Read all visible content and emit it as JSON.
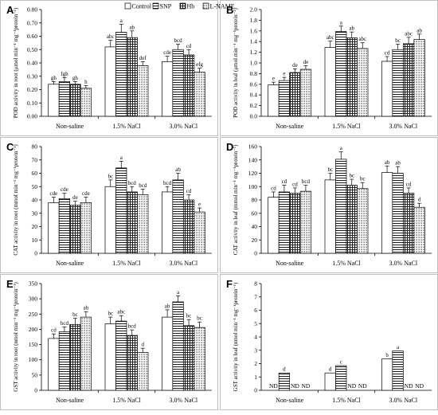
{
  "legend": {
    "entries": [
      {
        "name": "Control",
        "pattern": "none"
      },
      {
        "name": "SNP",
        "pattern": "hlines"
      },
      {
        "name": "Hb",
        "pattern": "grid"
      },
      {
        "name": "L-NAME",
        "pattern": "dots"
      }
    ]
  },
  "chart_data": [
    {
      "panel": "A",
      "type": "bar",
      "ylabel": "POD activity in root (μmol min⁻¹ mg⁻¹protein⁻¹)",
      "ylim": [
        0,
        0.8
      ],
      "yticks": [
        "0.00",
        "0.10",
        "0.20",
        "0.30",
        "0.40",
        "0.50",
        "0.60",
        "0.70",
        "0.80"
      ],
      "categories": [
        "Non-saline",
        "1.5% NaCl",
        "3.0% NaCl"
      ],
      "series": [
        {
          "name": "Control",
          "values": [
            0.24,
            0.52,
            0.41
          ],
          "errors": [
            0.02,
            0.05,
            0.04
          ],
          "letters": [
            "gh",
            "abc",
            "cde"
          ]
        },
        {
          "name": "SNP",
          "values": [
            0.26,
            0.63,
            0.5
          ],
          "errors": [
            0.03,
            0.06,
            0.04
          ],
          "letters": [
            "fgh",
            "a",
            "bcd"
          ]
        },
        {
          "name": "Hb",
          "values": [
            0.24,
            0.59,
            0.46
          ],
          "errors": [
            0.02,
            0.05,
            0.04
          ],
          "letters": [
            "gh",
            "ab",
            "cd"
          ]
        },
        {
          "name": "L-NAME",
          "values": [
            0.21,
            0.38,
            0.33
          ],
          "errors": [
            0.02,
            0.03,
            0.03
          ],
          "letters": [
            "h",
            "def",
            "efg"
          ]
        }
      ]
    },
    {
      "panel": "B",
      "type": "bar",
      "ylabel": "POD activity in leaf (μmol min⁻¹ mg⁻¹protein⁻¹)",
      "ylim": [
        0,
        2.0
      ],
      "yticks": [
        "0.0",
        "0.2",
        "0.4",
        "0.6",
        "0.8",
        "1.0",
        "1.2",
        "1.4",
        "1.6",
        "1.8",
        "2.0"
      ],
      "categories": [
        "Non-saline",
        "1.5% NaCl",
        "3.0% NaCl"
      ],
      "series": [
        {
          "name": "Control",
          "values": [
            0.59,
            1.29,
            1.03
          ],
          "errors": [
            0.05,
            0.12,
            0.09
          ],
          "letters": [
            "e",
            "abc",
            "cd"
          ]
        },
        {
          "name": "SNP",
          "values": [
            0.67,
            1.59,
            1.25
          ],
          "errors": [
            0.06,
            0.1,
            0.1
          ],
          "letters": [
            "e",
            "a",
            "bc"
          ]
        },
        {
          "name": "Hb",
          "values": [
            0.82,
            1.47,
            1.36
          ],
          "errors": [
            0.07,
            0.11,
            0.12
          ],
          "letters": [
            "de",
            "ab",
            "abc"
          ]
        },
        {
          "name": "L-NAME",
          "values": [
            0.88,
            1.27,
            1.44
          ],
          "errors": [
            0.07,
            0.11,
            0.1
          ],
          "letters": [
            "de",
            "abc",
            "ab"
          ]
        }
      ]
    },
    {
      "panel": "C",
      "type": "bar",
      "ylabel": "CAT activity in root (mmol min⁻¹ mg⁻¹protein⁻¹)",
      "ylim": [
        0,
        80
      ],
      "yticks": [
        "0",
        "10",
        "20",
        "30",
        "40",
        "50",
        "60",
        "70",
        "80"
      ],
      "categories": [
        "Non-saline",
        "1.5% NaCl",
        "3.0% NaCl"
      ],
      "series": [
        {
          "name": "Control",
          "values": [
            38,
            50,
            46
          ],
          "errors": [
            4,
            5,
            4
          ],
          "letters": [
            "cde",
            "bc",
            "bcd"
          ]
        },
        {
          "name": "SNP",
          "values": [
            41,
            64,
            55
          ],
          "errors": [
            4,
            5,
            5
          ],
          "letters": [
            "cde",
            "a",
            "ab"
          ]
        },
        {
          "name": "Hb",
          "values": [
            36,
            46,
            40
          ],
          "errors": [
            3,
            4,
            4
          ],
          "letters": [
            "de",
            "bcd",
            "cd"
          ]
        },
        {
          "name": "L-NAME",
          "values": [
            38,
            44,
            31
          ],
          "errors": [
            4,
            4,
            3
          ],
          "letters": [
            "cde",
            "bcd",
            "e"
          ]
        }
      ]
    },
    {
      "panel": "D",
      "type": "bar",
      "ylabel": "CAT activity in leaf (mmol min⁻¹ mg⁻¹protein⁻¹)",
      "ylim": [
        0,
        160
      ],
      "yticks": [
        "0",
        "20",
        "40",
        "60",
        "80",
        "100",
        "120",
        "140",
        "160"
      ],
      "categories": [
        "Non-saline",
        "1.5% NaCl",
        "3.0% NaCl"
      ],
      "series": [
        {
          "name": "Control",
          "values": [
            84,
            110,
            121
          ],
          "errors": [
            8,
            10,
            10
          ],
          "letters": [
            "cd",
            "bc",
            "ab"
          ]
        },
        {
          "name": "SNP",
          "values": [
            92,
            141,
            120
          ],
          "errors": [
            10,
            11,
            10
          ],
          "letters": [
            "cd",
            "a",
            "ab"
          ]
        },
        {
          "name": "Hb",
          "values": [
            90,
            102,
            90
          ],
          "errors": [
            8,
            9,
            8
          ],
          "letters": [
            "cd",
            "bc",
            "cd"
          ]
        },
        {
          "name": "L-NAME",
          "values": [
            93,
            97,
            69
          ],
          "errors": [
            9,
            9,
            6
          ],
          "letters": [
            "bcd",
            "bc",
            "d"
          ]
        }
      ]
    },
    {
      "panel": "E",
      "type": "bar",
      "ylabel": "GST activity in root (nmol min⁻¹ mg⁻¹protein⁻¹)",
      "ylim": [
        0,
        350
      ],
      "yticks": [
        "0",
        "50",
        "100",
        "150",
        "200",
        "250",
        "300",
        "350"
      ],
      "categories": [
        "Non-saline",
        "1.5% NaCl",
        "3.0% NaCl"
      ],
      "series": [
        {
          "name": "Control",
          "values": [
            170,
            218,
            240
          ],
          "errors": [
            15,
            22,
            24
          ],
          "letters": [
            "cd",
            "bc",
            "ab"
          ]
        },
        {
          "name": "SNP",
          "values": [
            192,
            227,
            290
          ],
          "errors": [
            16,
            18,
            20
          ],
          "letters": [
            "bcd",
            "abc",
            "a"
          ]
        },
        {
          "name": "Hb",
          "values": [
            216,
            180,
            212
          ],
          "errors": [
            20,
            18,
            20
          ],
          "letters": [
            "bc",
            "bcd",
            "bc"
          ]
        },
        {
          "name": "L-NAME",
          "values": [
            240,
            124,
            206
          ],
          "errors": [
            18,
            14,
            18
          ],
          "letters": [
            "ab",
            "d",
            "bc"
          ]
        }
      ]
    },
    {
      "panel": "F",
      "type": "bar",
      "ylabel": "GST activity in leaf (nmol min⁻¹ mg⁻¹protein⁻¹)",
      "ylim": [
        0,
        8
      ],
      "yticks": [
        "0",
        "1",
        "2",
        "3",
        "4",
        "5",
        "6",
        "7",
        "8"
      ],
      "categories": [
        "Non-saline",
        "1.5% NaCl",
        "3.0% NaCl"
      ],
      "series": [
        {
          "name": "Control",
          "values": [
            null,
            1.3,
            2.35
          ],
          "errors": [
            0,
            0,
            0
          ],
          "letters": [
            "ND",
            "d",
            "b"
          ]
        },
        {
          "name": "SNP",
          "values": [
            1.3,
            1.85,
            2.95
          ],
          "errors": [
            0,
            0,
            0
          ],
          "letters": [
            "d",
            "c",
            "a"
          ]
        },
        {
          "name": "Hb",
          "values": [
            null,
            null,
            null
          ],
          "errors": [
            0,
            0,
            0
          ],
          "letters": [
            "ND",
            "ND",
            "ND"
          ]
        },
        {
          "name": "L-NAME",
          "values": [
            null,
            null,
            null
          ],
          "errors": [
            0,
            0,
            0
          ],
          "letters": [
            "ND",
            "ND",
            "ND"
          ]
        }
      ]
    }
  ]
}
